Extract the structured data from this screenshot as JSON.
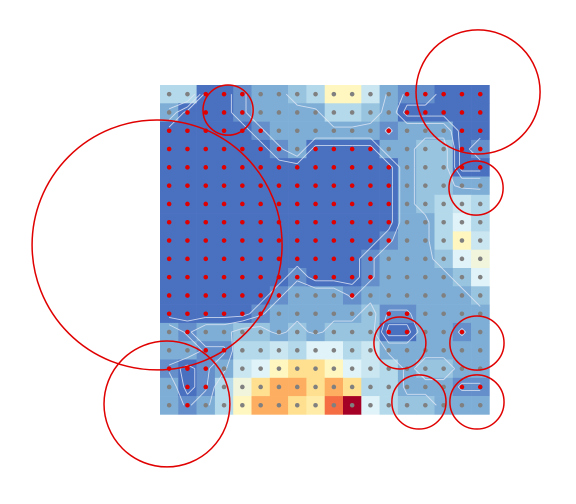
{
  "chart_data": {
    "type": "heatmap",
    "values": [
      [
        3,
        3,
        1,
        1,
        1.5,
        2,
        2,
        2.5,
        3,
        5,
        5,
        3.5,
        2,
        1.5,
        1.5,
        1,
        1,
        1
      ],
      [
        2,
        1,
        1,
        1,
        1.5,
        2,
        2,
        2,
        2,
        3,
        3,
        2.5,
        2,
        1,
        1,
        1,
        1,
        1
      ],
      [
        1,
        1,
        1,
        1,
        1,
        1.5,
        2,
        2,
        2,
        2,
        2,
        2,
        1.5,
        2,
        2,
        2,
        1,
        1
      ],
      [
        1,
        1,
        1,
        1,
        1,
        1,
        1.5,
        2,
        1,
        1,
        1,
        1,
        2,
        2,
        2.5,
        2.5,
        1,
        1.5
      ],
      [
        1,
        1,
        1,
        1,
        1,
        1,
        1,
        1,
        1,
        1,
        1,
        1,
        1,
        2,
        2.5,
        2.5,
        1,
        1
      ],
      [
        1,
        1,
        1,
        1,
        1,
        1,
        1,
        1,
        1,
        1,
        1,
        1,
        1,
        2,
        2.5,
        2.5,
        2,
        2
      ],
      [
        1,
        1,
        1,
        1,
        1,
        1,
        1,
        1,
        1,
        1,
        1,
        1,
        1,
        2,
        2.5,
        3,
        3.5,
        3
      ],
      [
        1,
        1,
        1,
        1,
        1,
        1,
        1,
        1,
        1,
        1,
        1,
        1,
        1,
        2,
        2,
        3,
        4,
        3
      ],
      [
        1,
        1,
        1,
        1,
        1,
        1,
        1,
        1,
        1,
        1,
        1,
        1,
        1.5,
        2,
        2,
        3,
        5,
        3.5
      ],
      [
        1,
        1,
        1,
        1,
        1,
        1,
        1,
        1,
        1,
        1,
        1,
        1.5,
        2,
        2,
        2,
        2.5,
        4,
        4.5
      ],
      [
        1,
        1,
        1,
        1,
        1,
        1,
        1,
        1.5,
        1,
        1,
        1,
        1.5,
        2,
        2,
        2,
        2,
        2.5,
        4
      ],
      [
        1,
        1,
        1,
        1,
        1,
        1,
        1.5,
        2,
        2,
        2,
        1.5,
        2,
        2,
        2,
        2,
        2,
        2,
        2.5
      ],
      [
        1,
        1,
        1,
        1,
        1,
        1.5,
        2,
        2,
        2,
        2,
        2,
        2.5,
        1.5,
        1.5,
        2,
        2,
        2,
        2
      ],
      [
        2,
        1.5,
        2,
        2,
        2.5,
        2.5,
        2,
        2.5,
        2,
        2.5,
        2.5,
        2.5,
        1,
        1,
        2,
        2,
        1.5,
        2
      ],
      [
        2,
        2,
        1.5,
        1.5,
        3,
        3,
        3.5,
        3,
        4,
        4,
        3,
        3.5,
        2,
        2,
        2,
        2,
        2,
        2
      ],
      [
        1.5,
        1,
        1.5,
        2,
        3.5,
        4,
        5,
        6,
        6,
        5,
        4,
        3.5,
        3,
        2,
        2.5,
        2.5,
        2,
        2
      ],
      [
        2,
        1,
        1.5,
        3,
        4.5,
        6,
        7,
        7,
        6,
        7,
        6,
        3,
        3,
        2,
        2,
        2,
        1.5,
        1.5
      ],
      [
        2,
        1.5,
        2,
        3,
        5,
        7,
        7,
        6,
        5.5,
        8,
        10,
        4,
        3,
        2.5,
        2.5,
        2,
        2,
        2
      ]
    ],
    "clim": [
      0,
      10
    ],
    "colormap": [
      "#3a4fa8",
      "#4a70c0",
      "#7eaed6",
      "#b4d9ea",
      "#e0f3f8",
      "#fff7bf",
      "#fee090",
      "#fdae61",
      "#f46d43",
      "#d73027",
      "#a50026"
    ],
    "contour_levels": [
      1.2,
      1.6,
      2.2
    ],
    "contour_color": "#dfe6f5",
    "dot_threshold": 1.5,
    "dot_colors": {
      "below": "#e00000",
      "above": "#808080"
    },
    "circle_color": "#e00000",
    "circles": [
      {
        "cx": -0.16,
        "cy": 8.74,
        "r": 6.83
      },
      {
        "cx": 17.38,
        "cy": 0.38,
        "r": 3.39
      },
      {
        "cx": 17.27,
        "cy": 5.63,
        "r": 1.48
      },
      {
        "cx": 13.11,
        "cy": 14.1,
        "r": 1.42
      },
      {
        "cx": 17.32,
        "cy": 14.1,
        "r": 1.48
      },
      {
        "cx": 0.38,
        "cy": 17.43,
        "r": 3.44
      },
      {
        "cx": 14.15,
        "cy": 17.32,
        "r": 1.48
      },
      {
        "cx": 17.32,
        "cy": 17.32,
        "r": 1.48
      },
      {
        "cx": 3.72,
        "cy": 1.37,
        "r": 1.37
      }
    ]
  }
}
